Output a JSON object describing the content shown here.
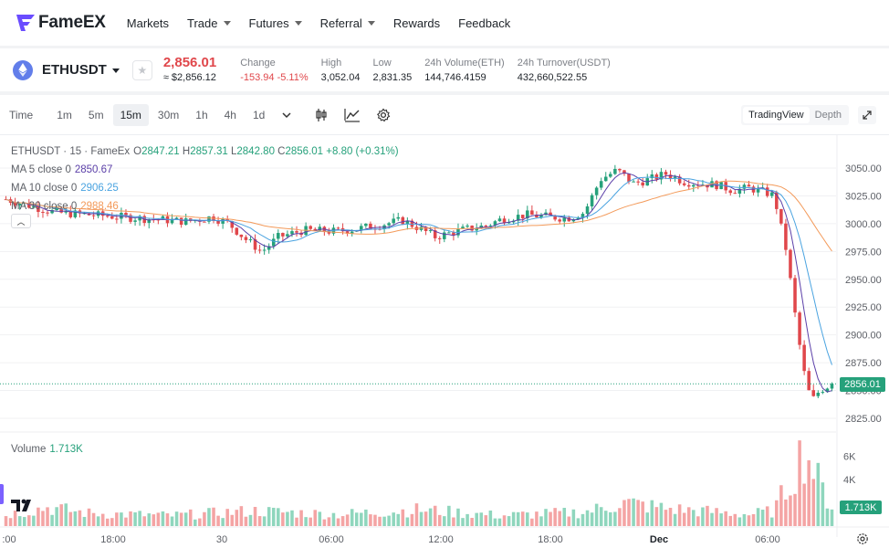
{
  "brand": {
    "name": "FameEX",
    "logo": "fameex-logo",
    "accent": "#6a4cff"
  },
  "nav": {
    "items": [
      {
        "label": "Markets",
        "dropdown": false
      },
      {
        "label": "Trade",
        "dropdown": true
      },
      {
        "label": "Futures",
        "dropdown": true
      },
      {
        "label": "Referral",
        "dropdown": true
      },
      {
        "label": "Rewards",
        "dropdown": false
      },
      {
        "label": "Feedback",
        "dropdown": false
      }
    ]
  },
  "ticker": {
    "symbol": "ETHUSDT",
    "icon": "ethereum-icon",
    "last_price": "2,856.01",
    "fiat_price": "≈ $2,856.12",
    "stats": [
      {
        "label": "Change",
        "value": "-153.94 -5.11%",
        "tone": "red"
      },
      {
        "label": "High",
        "value": "3,052.04",
        "tone": "normal"
      },
      {
        "label": "Low",
        "value": "2,831.35",
        "tone": "normal"
      },
      {
        "label": "24h Volume(ETH)",
        "value": "144,746.4159",
        "tone": "normal"
      },
      {
        "label": "24h Turnover(USDT)",
        "value": "432,660,522.55",
        "tone": "normal"
      }
    ]
  },
  "toolbar": {
    "time_label": "Time",
    "intervals": [
      "1m",
      "5m",
      "15m",
      "30m",
      "1h",
      "4h",
      "1d"
    ],
    "active_interval": "15m",
    "icons": [
      "chevron-down-icon",
      "candlestick-icon",
      "indicator-icon",
      "settings-icon"
    ],
    "views": [
      "TradingView",
      "Depth"
    ],
    "active_view": "TradingView"
  },
  "legend": {
    "title": "ETHUSDT · 15 · FameEx",
    "ohlc": {
      "o_label": "O",
      "o": "2847.21",
      "h_label": "H",
      "h": "2857.31",
      "l_label": "L",
      "l": "2842.80",
      "c_label": "C",
      "c": "2856.01",
      "change": "+8.80 (+0.31%)"
    },
    "ma": [
      {
        "label": "MA 5 close 0",
        "value": "2850.67",
        "color": "#5b3fa8"
      },
      {
        "label": "MA 10 close 0",
        "value": "2906.25",
        "color": "#4aa3e0"
      },
      {
        "label": "MA 30 close 0",
        "value": "2988.46",
        "color": "#f39a5a"
      }
    ],
    "volume_label": "Volume",
    "volume_value": "1.713K"
  },
  "price_tag": "2856.01",
  "volume_tag": "1.713K",
  "colors": {
    "up": "#26a17b",
    "down": "#e0474b",
    "up_vol": "#8fd6bd",
    "down_vol": "#f4a4a4"
  },
  "chart_data": {
    "type": "candlestick",
    "interval": "15m",
    "y_ticks": [
      3050,
      3025,
      3000,
      2975,
      2950,
      2925,
      2900,
      2875,
      2850,
      2825
    ],
    "y_tick_labels": [
      "3050.00",
      "3025.00",
      "3000.00",
      "2975.00",
      "2950.00",
      "2925.00",
      "2900.00",
      "2875.00",
      "2850.00",
      "2825.00"
    ],
    "ylim": [
      2816,
      3058
    ],
    "volume_ticks": [
      "6K",
      "4K"
    ],
    "x_labels": [
      ":00",
      "18:00",
      "30",
      "06:00",
      "12:00",
      "18:00",
      "Dec",
      "06:00"
    ],
    "last_close": 2856.01,
    "price_path": [
      [
        0,
        3022
      ],
      [
        0.03,
        3016
      ],
      [
        0.06,
        3010
      ],
      [
        0.1,
        3008
      ],
      [
        0.14,
        3006
      ],
      [
        0.18,
        3004
      ],
      [
        0.22,
        3002
      ],
      [
        0.25,
        3006
      ],
      [
        0.27,
        3000
      ],
      [
        0.29,
        2986
      ],
      [
        0.31,
        2975
      ],
      [
        0.33,
        2988
      ],
      [
        0.36,
        2994
      ],
      [
        0.4,
        2993
      ],
      [
        0.43,
        2996
      ],
      [
        0.46,
        3000
      ],
      [
        0.48,
        3003
      ],
      [
        0.5,
        2996
      ],
      [
        0.52,
        2988
      ],
      [
        0.55,
        2994
      ],
      [
        0.58,
        2998
      ],
      [
        0.6,
        3004
      ],
      [
        0.63,
        3008
      ],
      [
        0.66,
        3006
      ],
      [
        0.68,
        3005
      ],
      [
        0.7,
        3010
      ],
      [
        0.72,
        3040
      ],
      [
        0.74,
        3048
      ],
      [
        0.76,
        3036
      ],
      [
        0.78,
        3040
      ],
      [
        0.8,
        3045
      ],
      [
        0.82,
        3038
      ],
      [
        0.84,
        3036
      ],
      [
        0.86,
        3035
      ],
      [
        0.88,
        3030
      ],
      [
        0.9,
        3032
      ],
      [
        0.92,
        3028
      ],
      [
        0.93,
        3025
      ],
      [
        0.945,
        2975
      ],
      [
        0.955,
        2920
      ],
      [
        0.965,
        2870
      ],
      [
        0.975,
        2840
      ],
      [
        0.985,
        2850
      ],
      [
        1,
        2856
      ]
    ],
    "volume_path": [
      [
        0,
        1.0
      ],
      [
        0.05,
        1.6
      ],
      [
        0.1,
        1.1
      ],
      [
        0.2,
        0.9
      ],
      [
        0.3,
        1.3
      ],
      [
        0.4,
        1.0
      ],
      [
        0.5,
        1.4
      ],
      [
        0.6,
        0.9
      ],
      [
        0.7,
        1.2
      ],
      [
        0.75,
        2.0
      ],
      [
        0.8,
        1.5
      ],
      [
        0.9,
        1.0
      ],
      [
        0.93,
        1.3
      ],
      [
        0.95,
        4.0
      ],
      [
        0.965,
        6.5
      ],
      [
        0.975,
        5.5
      ],
      [
        0.985,
        3.5
      ],
      [
        1,
        1.7
      ]
    ]
  }
}
